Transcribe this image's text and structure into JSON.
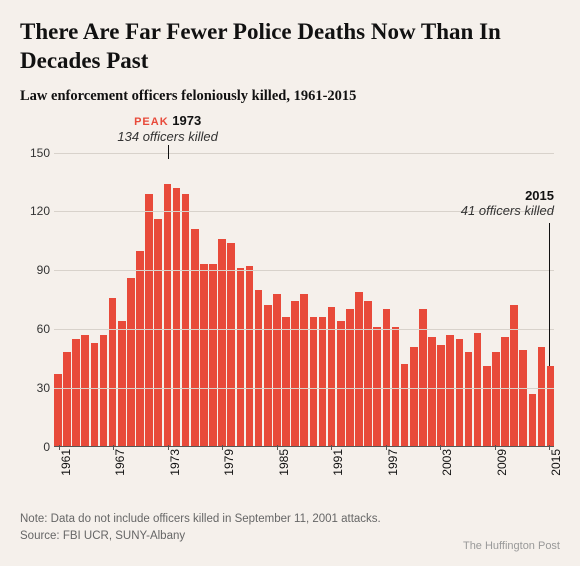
{
  "title": "There Are Far Fewer Police Deaths Now Than In Decades Past",
  "subtitle": "Law enforcement officers feloniously killed, 1961-2015",
  "chart": {
    "type": "bar",
    "start_year": 1961,
    "end_year": 2015,
    "values": [
      37,
      48,
      55,
      57,
      53,
      57,
      76,
      64,
      86,
      100,
      129,
      116,
      134,
      132,
      129,
      111,
      93,
      93,
      106,
      104,
      91,
      92,
      80,
      72,
      78,
      66,
      74,
      78,
      66,
      66,
      71,
      64,
      70,
      79,
      74,
      61,
      70,
      61,
      42,
      51,
      70,
      56,
      52,
      57,
      55,
      48,
      58,
      41,
      48,
      56,
      72,
      49,
      27,
      51,
      41
    ],
    "bar_color": "#e84a3a",
    "background_color": "#f5f0eb",
    "grid_color": "#d8d2cb",
    "ylim": [
      0,
      150
    ],
    "ytick_step": 30,
    "xtick_step": 6,
    "label_fontsize": 12,
    "annotations": {
      "peak": {
        "year": 1973,
        "peak_label": "PEAK",
        "year_label": "1973",
        "detail": "134 officers killed"
      },
      "last": {
        "year": 2015,
        "year_label": "2015",
        "detail": "41 officers killed"
      }
    }
  },
  "footer": {
    "note": "Note: Data do not include officers killed in September 11, 2001 attacks.",
    "source": "Source: FBI UCR, SUNY-Albany"
  },
  "credit": "The Huffington Post"
}
